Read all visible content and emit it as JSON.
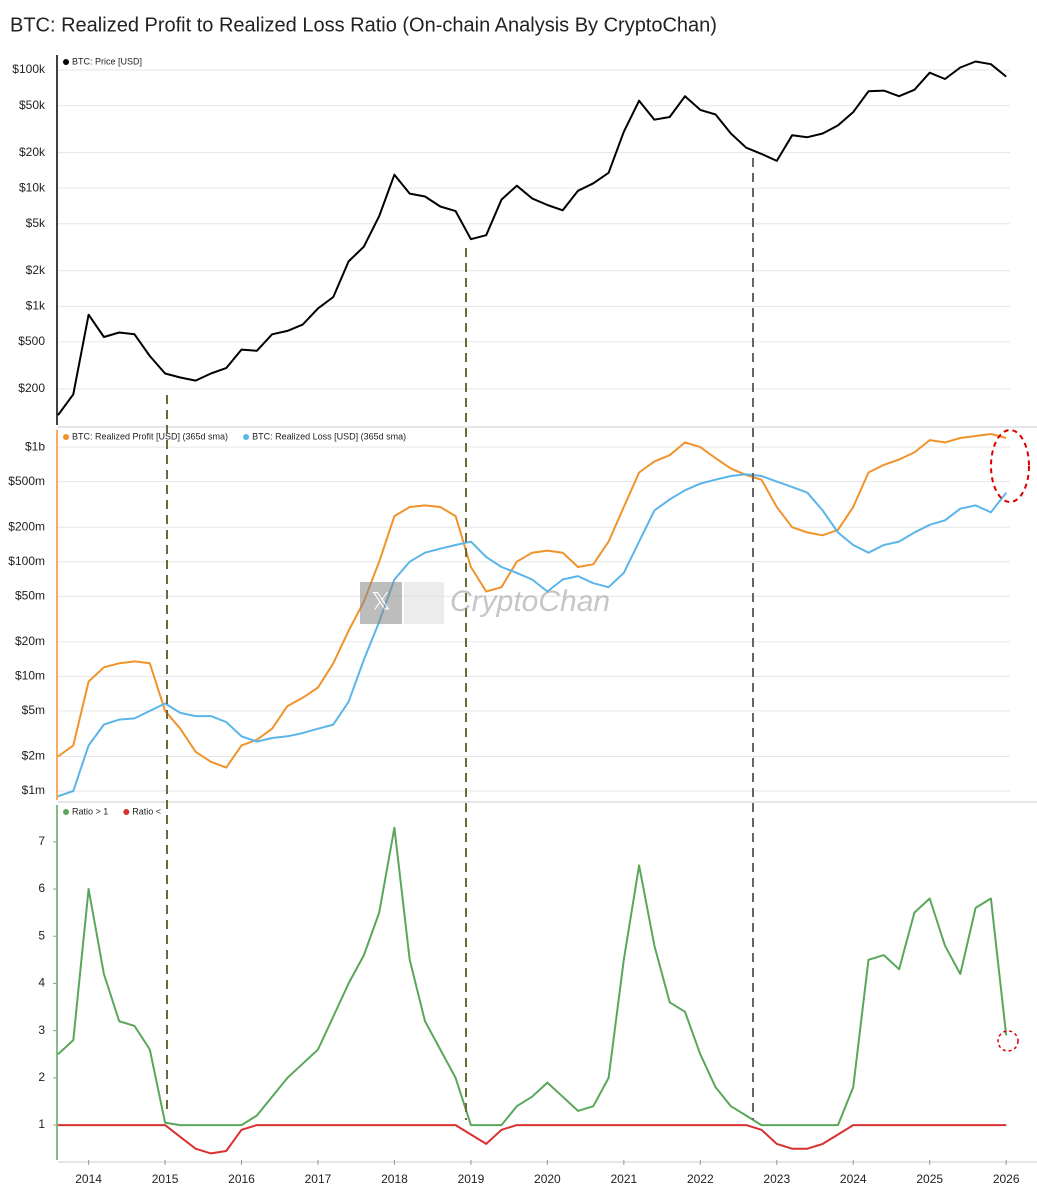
{
  "chart_data": [
    {
      "type": "line",
      "title": "BTC: Realized Profit to Realized Loss Ratio (On-chain Analysis By CryptoChan)",
      "log_scale": true,
      "grid": true,
      "x": [
        2013.6,
        2013.8,
        2014.0,
        2014.2,
        2014.4,
        2014.6,
        2014.8,
        2015.0,
        2015.2,
        2015.4,
        2015.6,
        2015.8,
        2016.0,
        2016.2,
        2016.4,
        2016.6,
        2016.8,
        2017.0,
        2017.2,
        2017.4,
        2017.6,
        2017.8,
        2018.0,
        2018.2,
        2018.4,
        2018.6,
        2018.8,
        2019.0,
        2019.2,
        2019.4,
        2019.6,
        2019.8,
        2020.0,
        2020.2,
        2020.4,
        2020.6,
        2020.8,
        2021.0,
        2021.2,
        2021.4,
        2021.6,
        2021.8,
        2022.0,
        2022.2,
        2022.4,
        2022.6,
        2022.8,
        2023.0,
        2023.2,
        2023.4,
        2023.6,
        2023.8,
        2024.0,
        2024.2,
        2024.4,
        2024.6,
        2024.8,
        2025.0,
        2025.2,
        2025.4,
        2025.6,
        2025.8,
        2026.0
      ],
      "xlim": [
        2013.6,
        2026.05
      ],
      "ylim": [
        99,
        134000
      ],
      "yticks": [
        {
          "value": 100000,
          "label": "$100k"
        },
        {
          "value": 50000,
          "label": "$50k"
        },
        {
          "value": 20000,
          "label": "$20k"
        },
        {
          "value": 10000,
          "label": "$10k"
        },
        {
          "value": 5000,
          "label": "$5k"
        },
        {
          "value": 2000,
          "label": "$2k"
        },
        {
          "value": 1000,
          "label": "$1k"
        },
        {
          "value": 500,
          "label": "$500"
        },
        {
          "value": 200,
          "label": "$200"
        }
      ],
      "series": [
        {
          "name": "BTC: Price [USD]",
          "color": "#000000",
          "values": [
            120,
            180,
            850,
            550,
            600,
            580,
            380,
            270,
            250,
            235,
            270,
            300,
            430,
            420,
            580,
            620,
            700,
            960,
            1200,
            2400,
            3200,
            5800,
            13000,
            9000,
            8500,
            7000,
            6400,
            3700,
            4000,
            8000,
            10500,
            8200,
            7200,
            6500,
            9500,
            11000,
            13500,
            30000,
            55000,
            38000,
            40000,
            60000,
            46000,
            42000,
            29000,
            22000,
            19500,
            17000,
            28000,
            27000,
            29000,
            34000,
            44000,
            66000,
            67000,
            60000,
            68000,
            95000,
            84000,
            105000,
            118000,
            112000,
            88000
          ]
        }
      ]
    },
    {
      "type": "line",
      "log_scale": true,
      "grid": true,
      "x": [
        2013.6,
        2013.8,
        2014.0,
        2014.2,
        2014.4,
        2014.6,
        2014.8,
        2015.0,
        2015.2,
        2015.4,
        2015.6,
        2015.8,
        2016.0,
        2016.2,
        2016.4,
        2016.6,
        2016.8,
        2017.0,
        2017.2,
        2017.4,
        2017.6,
        2017.8,
        2018.0,
        2018.2,
        2018.4,
        2018.6,
        2018.8,
        2019.0,
        2019.2,
        2019.4,
        2019.6,
        2019.8,
        2020.0,
        2020.2,
        2020.4,
        2020.6,
        2020.8,
        2021.0,
        2021.2,
        2021.4,
        2021.6,
        2021.8,
        2022.0,
        2022.2,
        2022.4,
        2022.6,
        2022.8,
        2023.0,
        2023.2,
        2023.4,
        2023.6,
        2023.8,
        2024.0,
        2024.2,
        2024.4,
        2024.6,
        2024.8,
        2025.0,
        2025.2,
        2025.4,
        2025.6,
        2025.8,
        2026.0
      ],
      "xlim": [
        2013.6,
        2026.05
      ],
      "ylim": [
        835000,
        1410000000
      ],
      "yticks": [
        {
          "value": 1000000000,
          "label": "$1b"
        },
        {
          "value": 500000000,
          "label": "$500m"
        },
        {
          "value": 200000000,
          "label": "$200m"
        },
        {
          "value": 100000000,
          "label": "$100m"
        },
        {
          "value": 50000000,
          "label": "$50m"
        },
        {
          "value": 20000000,
          "label": "$20m"
        },
        {
          "value": 10000000,
          "label": "$10m"
        },
        {
          "value": 5000000,
          "label": "$5m"
        },
        {
          "value": 2000000,
          "label": "$2m"
        },
        {
          "value": 1000000,
          "label": "$1m"
        }
      ],
      "watermark": "CryptoChan",
      "series": [
        {
          "name": "BTC: Realized Profit [USD] (365d sma)",
          "color": "#f0932b",
          "values": [
            2000000,
            2500000,
            9000000,
            12000000,
            13000000,
            13500000,
            13000000,
            5000000,
            3500000,
            2200000,
            1800000,
            1600000,
            2500000,
            2800000,
            3500000,
            5500000,
            6500000,
            8000000,
            13000000,
            25000000,
            45000000,
            100000000,
            250000000,
            300000000,
            310000000,
            300000000,
            250000000,
            90000000,
            55000000,
            60000000,
            100000000,
            120000000,
            125000000,
            120000000,
            90000000,
            95000000,
            150000000,
            300000000,
            600000000,
            750000000,
            850000000,
            1100000000,
            1000000000,
            800000000,
            650000000,
            570000000,
            520000000,
            300000000,
            200000000,
            180000000,
            170000000,
            190000000,
            300000000,
            600000000,
            700000000,
            780000000,
            900000000,
            1150000000,
            1100000000,
            1200000000,
            1250000000,
            1300000000,
            1200000000
          ]
        },
        {
          "name": "BTC: Realized Loss [USD] (365d sma)",
          "color": "#5bb5e8",
          "values": [
            900000,
            1000000,
            2500000,
            3800000,
            4200000,
            4300000,
            5000000,
            5800000,
            4800000,
            4500000,
            4500000,
            4000000,
            3000000,
            2700000,
            2900000,
            3000000,
            3200000,
            3500000,
            3800000,
            6000000,
            14000000,
            30000000,
            70000000,
            100000000,
            120000000,
            130000000,
            140000000,
            150000000,
            110000000,
            90000000,
            80000000,
            70000000,
            55000000,
            70000000,
            75000000,
            65000000,
            60000000,
            80000000,
            150000000,
            280000000,
            350000000,
            420000000,
            480000000,
            520000000,
            560000000,
            580000000,
            560000000,
            500000000,
            450000000,
            400000000,
            280000000,
            180000000,
            140000000,
            120000000,
            140000000,
            150000000,
            180000000,
            210000000,
            230000000,
            290000000,
            310000000,
            270000000,
            400000000
          ]
        }
      ]
    },
    {
      "type": "line",
      "log_scale": false,
      "grid": false,
      "x": [
        2013.6,
        2013.8,
        2014.0,
        2014.2,
        2014.4,
        2014.6,
        2014.8,
        2015.0,
        2015.2,
        2015.4,
        2015.6,
        2015.8,
        2016.0,
        2016.2,
        2016.4,
        2016.6,
        2016.8,
        2017.0,
        2017.2,
        2017.4,
        2017.6,
        2017.8,
        2018.0,
        2018.2,
        2018.4,
        2018.6,
        2018.8,
        2019.0,
        2019.2,
        2019.4,
        2019.6,
        2019.8,
        2020.0,
        2020.2,
        2020.4,
        2020.6,
        2020.8,
        2021.0,
        2021.2,
        2021.4,
        2021.6,
        2021.8,
        2022.0,
        2022.2,
        2022.4,
        2022.6,
        2022.8,
        2023.0,
        2023.2,
        2023.4,
        2023.6,
        2023.8,
        2024.0,
        2024.2,
        2024.4,
        2024.6,
        2024.8,
        2025.0,
        2025.2,
        2025.4,
        2025.6,
        2025.8,
        2026.0
      ],
      "xlim": [
        2013.6,
        2026.05
      ],
      "ylim": [
        0.26,
        7.78
      ],
      "xticks": [
        2014,
        2015,
        2016,
        2017,
        2018,
        2019,
        2020,
        2021,
        2022,
        2023,
        2024,
        2025,
        2026
      ],
      "yticks": [
        1,
        2,
        3,
        4,
        5,
        6,
        7
      ],
      "series": [
        {
          "name": "Ratio > 1",
          "color": "#5aa75a",
          "values": [
            2.5,
            2.8,
            6.0,
            4.2,
            3.2,
            3.1,
            2.6,
            1.05,
            1,
            1,
            1,
            1,
            1,
            1.2,
            1.6,
            2.0,
            2.3,
            2.6,
            3.3,
            4.0,
            4.6,
            5.5,
            7.3,
            4.5,
            3.2,
            2.6,
            2.0,
            1,
            1,
            1,
            1.4,
            1.6,
            1.9,
            1.6,
            1.3,
            1.4,
            2.0,
            4.5,
            6.5,
            4.8,
            3.6,
            3.4,
            2.5,
            1.8,
            1.4,
            1.2,
            1,
            1,
            1,
            1,
            1,
            1,
            1.8,
            4.5,
            4.6,
            4.3,
            5.5,
            5.8,
            4.8,
            4.2,
            5.6,
            5.8,
            2.9
          ]
        },
        {
          "name": "Ratio <",
          "color": "#d93030",
          "values": [
            1,
            1,
            1,
            1,
            1,
            1,
            1,
            1,
            0.75,
            0.5,
            0.4,
            0.45,
            0.9,
            1,
            1,
            1,
            1,
            1,
            1,
            1,
            1,
            1,
            1,
            1,
            1,
            1,
            1,
            0.8,
            0.6,
            0.9,
            1,
            1,
            1,
            1,
            1,
            1,
            1,
            1,
            1,
            1,
            1,
            1,
            1,
            1,
            1,
            1,
            0.9,
            0.6,
            0.5,
            0.5,
            0.6,
            0.8,
            1,
            1,
            1,
            1,
            1,
            1,
            1,
            1,
            1,
            1,
            1
          ]
        }
      ]
    }
  ]
}
